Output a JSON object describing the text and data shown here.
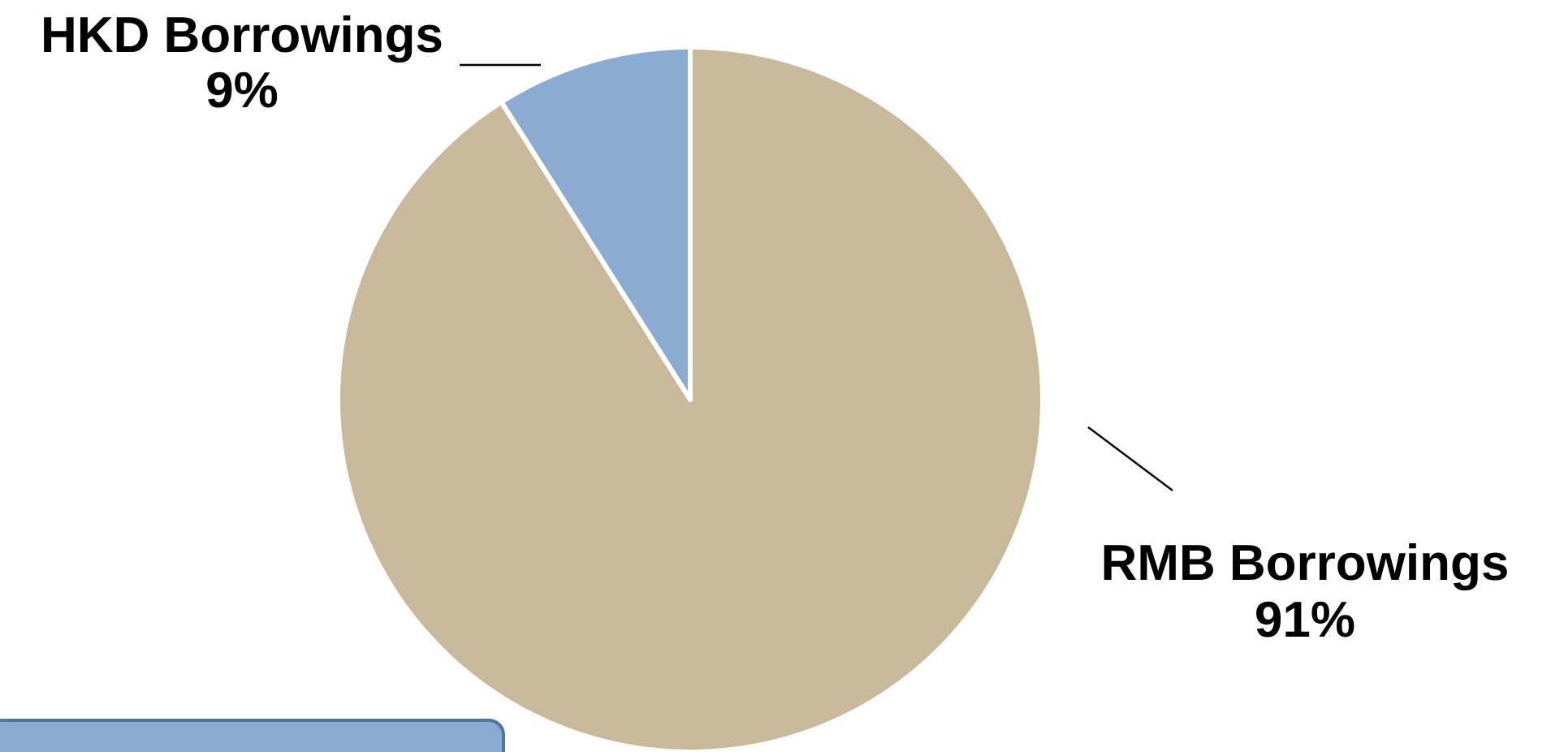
{
  "chart_data": {
    "type": "pie",
    "categories": [
      "RMB Borrowings",
      "HKD Borrowings"
    ],
    "values": [
      91,
      9
    ],
    "colors": [
      "#c8b99a",
      "#8aabd2"
    ],
    "value_labels": [
      "91%",
      "9%"
    ]
  }
}
